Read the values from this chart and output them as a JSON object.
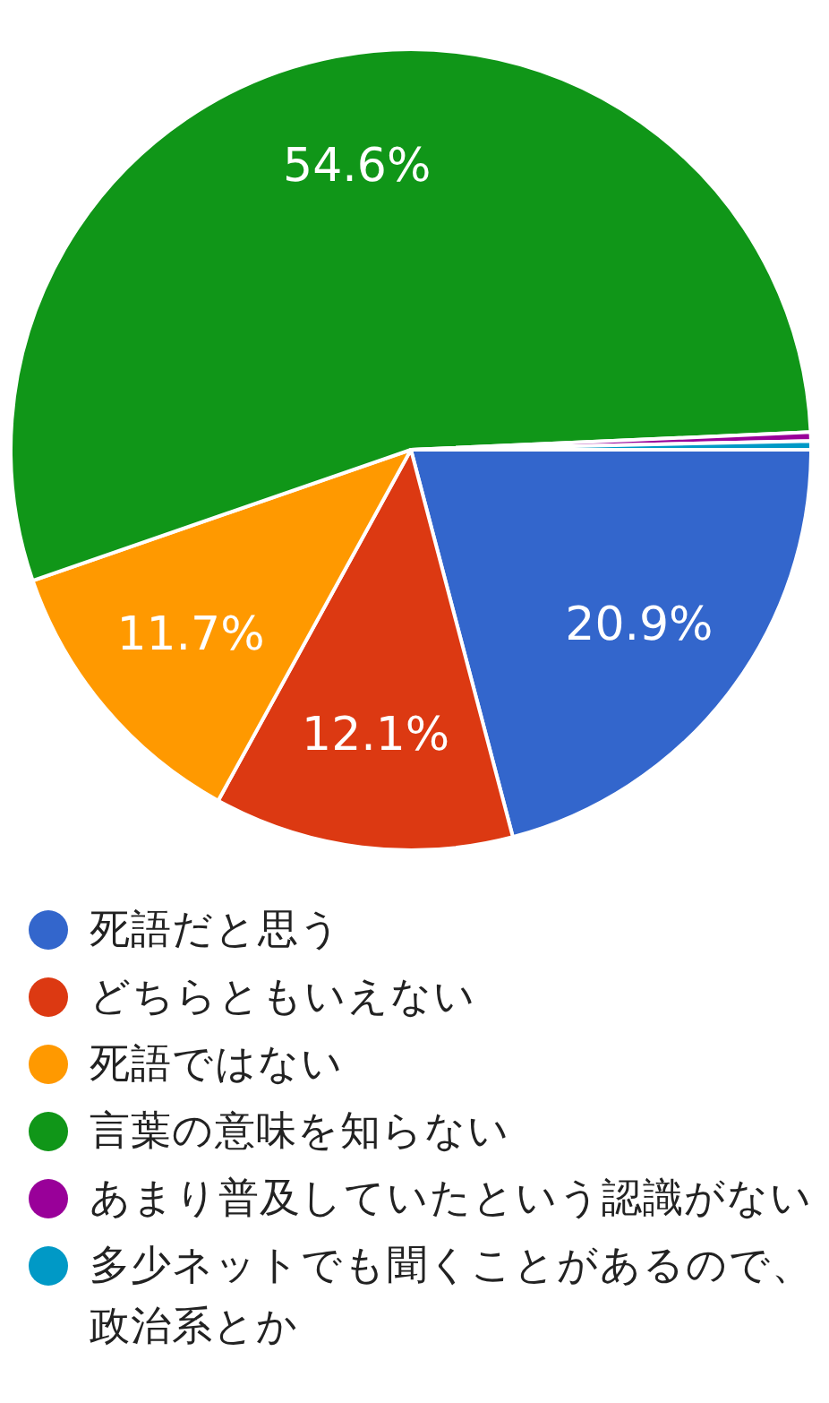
{
  "chart_data": {
    "type": "pie",
    "categories": [
      "死語だと思う",
      "どちらともいえない",
      "死語ではない",
      "言葉の意味を知らない",
      "あまり普及していたという認識がない",
      "多少ネットでも聞くことがあるので、政治系とか"
    ],
    "values": [
      20.9,
      12.1,
      11.7,
      54.6,
      0.35,
      0.35
    ],
    "colors": [
      "#3366cc",
      "#dc3912",
      "#ff9900",
      "#109618",
      "#990099",
      "#0099c6"
    ],
    "value_labels": [
      "20.9%",
      "12.1%",
      "11.7%",
      "54.6%",
      null,
      null
    ],
    "legend": "bottom"
  }
}
